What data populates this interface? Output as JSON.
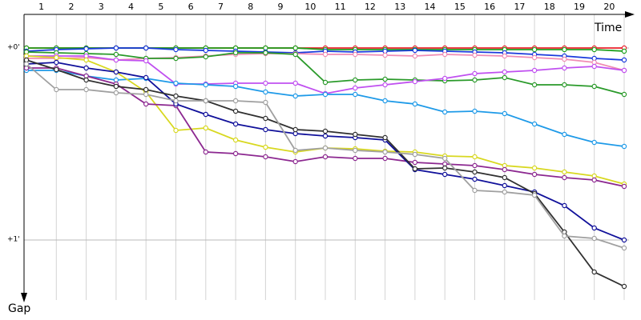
{
  "chart_data": {
    "type": "line",
    "x_label": "Time",
    "y_label": "Gap",
    "x": [
      0,
      1,
      2,
      3,
      4,
      5,
      6,
      7,
      8,
      9,
      10,
      11,
      12,
      13,
      14,
      15,
      16,
      17,
      18,
      19,
      20
    ],
    "xlim": [
      0,
      20
    ],
    "xticks": [
      {
        "value": 0.5,
        "label": "1"
      },
      {
        "value": 1.5,
        "label": "2"
      },
      {
        "value": 2.5,
        "label": "3"
      },
      {
        "value": 3.5,
        "label": "4"
      },
      {
        "value": 4.5,
        "label": "5"
      },
      {
        "value": 5.5,
        "label": "6"
      },
      {
        "value": 6.5,
        "label": "7"
      },
      {
        "value": 7.5,
        "label": "8"
      },
      {
        "value": 8.5,
        "label": "9"
      },
      {
        "value": 9.5,
        "label": "10"
      },
      {
        "value": 10.5,
        "label": "11"
      },
      {
        "value": 11.5,
        "label": "12"
      },
      {
        "value": 12.5,
        "label": "13"
      },
      {
        "value": 13.5,
        "label": "14"
      },
      {
        "value": 14.5,
        "label": "15"
      },
      {
        "value": 15.5,
        "label": "16"
      },
      {
        "value": 16.5,
        "label": "17"
      },
      {
        "value": 17.5,
        "label": "18"
      },
      {
        "value": 18.5,
        "label": "19"
      },
      {
        "value": 19.5,
        "label": "20"
      }
    ],
    "ylim": [
      -10.5,
      78.75
    ],
    "inverted": true,
    "yticks": [
      {
        "value": 0,
        "label": "+0'"
      },
      {
        "value": 60,
        "label": "+1'"
      }
    ],
    "grid": true,
    "series": [
      {
        "color": "#e8202a",
        "values": [
          0,
          0,
          0,
          0,
          0,
          0,
          0,
          0,
          0,
          0,
          0,
          0,
          0,
          0,
          0,
          0,
          0,
          0,
          0,
          0,
          0
        ]
      },
      {
        "color": "#1ca01c",
        "values": [
          0,
          0,
          0,
          0,
          0,
          0,
          0,
          0,
          0,
          0,
          0.5,
          0.5,
          0.5,
          0.5,
          0.5,
          0.5,
          0.5,
          0.5,
          0.5,
          0.5,
          1
        ]
      },
      {
        "color": "#1a3adc",
        "values": [
          1,
          0.5,
          0.25,
          0,
          0,
          0.5,
          0.75,
          1,
          1.25,
          1.5,
          1,
          1.25,
          1,
          0.75,
          1,
          1.25,
          1.5,
          2,
          2.5,
          3.25,
          3.75
        ]
      },
      {
        "color": "#f08cb4",
        "values": [
          3.25,
          3.25,
          3,
          3.75,
          3.25,
          3,
          2.5,
          2,
          1.75,
          1.75,
          2,
          2,
          2.25,
          2.5,
          2,
          2.25,
          2.5,
          3,
          3.5,
          4.5,
          7
        ]
      },
      {
        "color": "#2a9a2a",
        "values": [
          1.25,
          1.5,
          1.75,
          2,
          3.25,
          3.25,
          2.75,
          1.5,
          1.5,
          2,
          10.75,
          10,
          9.75,
          10,
          10.25,
          10,
          9.25,
          11.5,
          11.5,
          12,
          14.5
        ]
      },
      {
        "color": "#c050f0",
        "values": [
          2.5,
          2.5,
          2.5,
          3.75,
          4,
          11.25,
          11.25,
          11,
          11,
          11,
          14.25,
          12.5,
          11.5,
          10.5,
          9.5,
          8,
          7.5,
          7,
          6.25,
          5.75,
          7
        ]
      },
      {
        "color": "#1e9ae8",
        "values": [
          7,
          7,
          8.75,
          10,
          9.5,
          11,
          11.5,
          12,
          13.75,
          15,
          14.5,
          14.5,
          16.5,
          17.5,
          20,
          19.75,
          20.5,
          23.75,
          27,
          29.5,
          30.75
        ]
      },
      {
        "color": "#d8d820",
        "values": [
          2.5,
          3,
          3.75,
          7.5,
          13.75,
          25.75,
          25,
          28.75,
          31,
          32.5,
          31.25,
          31.5,
          32.25,
          32.5,
          33.75,
          34,
          36.75,
          37.5,
          38.75,
          40,
          42.5
        ]
      },
      {
        "color": "#8c2890",
        "values": [
          6.25,
          6.25,
          8.75,
          11.25,
          17.5,
          18,
          32.5,
          33,
          34,
          35.5,
          34,
          34.5,
          34.5,
          35.75,
          36.25,
          36.75,
          38,
          39.5,
          40.5,
          41.25,
          43.25
        ]
      },
      {
        "color": "#10109a",
        "values": [
          5,
          4.5,
          6.25,
          7.5,
          9.25,
          17.5,
          20.75,
          23.75,
          25.5,
          26.75,
          27.5,
          28,
          28.75,
          38,
          39.5,
          41,
          43,
          45,
          49.25,
          56.25,
          60
        ]
      },
      {
        "color": "#303030",
        "values": [
          3.75,
          6.75,
          10,
          12,
          13,
          15,
          16.5,
          19.75,
          22,
          25.5,
          26,
          27,
          28,
          37.75,
          37.5,
          38.75,
          40.5,
          45.5,
          57.5,
          70,
          74.5
        ]
      },
      {
        "color": "#a0a0a0",
        "values": [
          5,
          13,
          13,
          14,
          14.5,
          16.5,
          16.5,
          16.5,
          17,
          32,
          31.25,
          32,
          32.5,
          33.25,
          34.5,
          44.5,
          45,
          46,
          58.75,
          59.5,
          62.5
        ]
      }
    ]
  }
}
